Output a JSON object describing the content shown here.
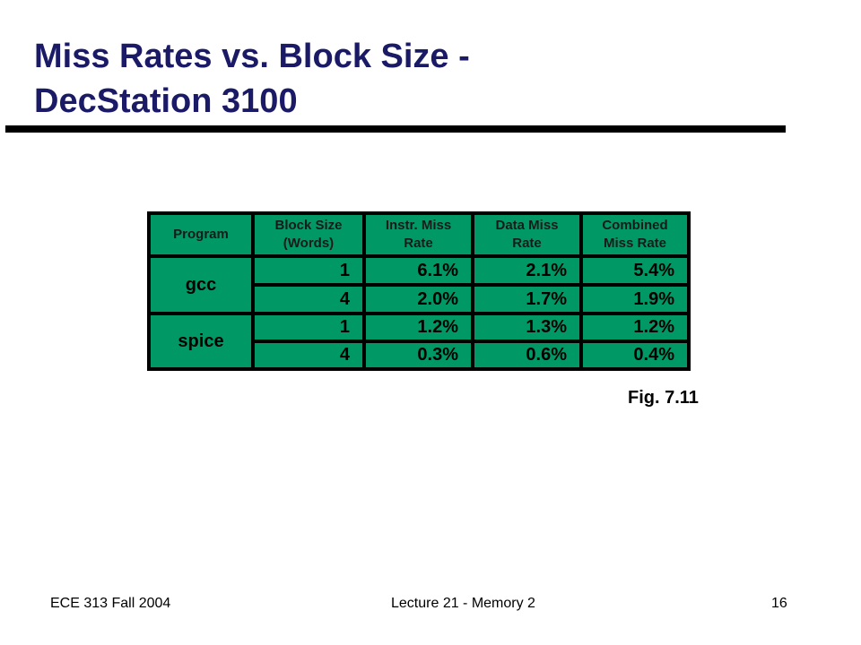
{
  "slide": {
    "title_line1": "Miss Rates vs. Block Size -",
    "title_line2": "DecStation 3100",
    "caption": "Fig. 7.11"
  },
  "table": {
    "headers": {
      "program": "Program",
      "block_size": [
        "Block Size",
        "(Words)"
      ],
      "instr": [
        "Instr. Miss",
        "Rate"
      ],
      "data": [
        "Data Miss",
        "Rate"
      ],
      "combined": [
        "Combined",
        "Miss Rate"
      ]
    },
    "groups": [
      {
        "program": "gcc",
        "rows": [
          {
            "block": "1",
            "instr": "6.1%",
            "data": "2.1%",
            "combined": "5.4%"
          },
          {
            "block": "4",
            "instr": "2.0%",
            "data": "1.7%",
            "combined": "1.9%"
          }
        ]
      },
      {
        "program": "spice",
        "rows": [
          {
            "block": "1",
            "instr": "1.2%",
            "data": "1.3%",
            "combined": "1.2%"
          },
          {
            "block": "4",
            "instr": "0.3%",
            "data": "0.6%",
            "combined": "0.4%"
          }
        ]
      }
    ],
    "colors": {
      "cell": "#009966",
      "grid": "#000000"
    }
  },
  "footer": {
    "left": "ECE 313 Fall 2004",
    "center": "Lecture 21 - Memory 2",
    "page": "16"
  }
}
